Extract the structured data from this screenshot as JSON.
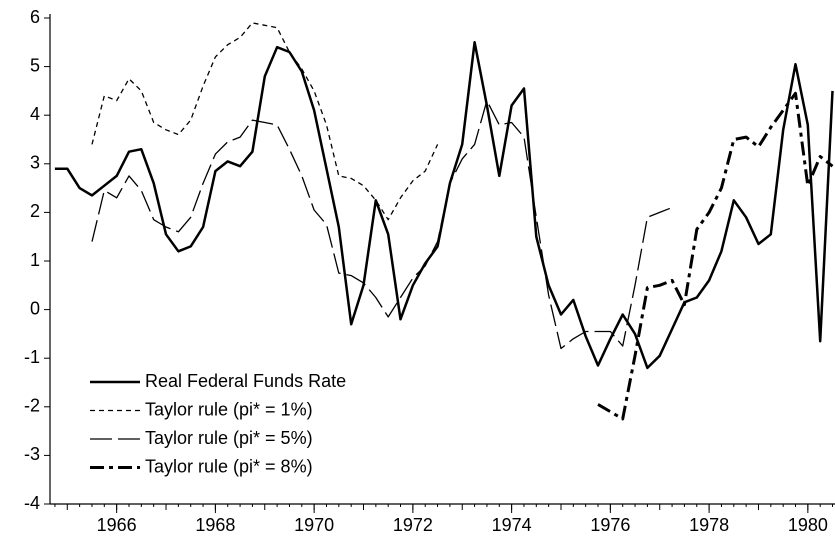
{
  "chart_data": {
    "type": "line",
    "xlim": [
      1964.65,
      1980.55
    ],
    "ylim": [
      -4,
      6
    ],
    "xticks": [
      1966,
      1968,
      1970,
      1972,
      1974,
      1976,
      1978,
      1980
    ],
    "yticks": [
      -4,
      -3,
      -2,
      -1,
      0,
      1,
      2,
      3,
      4,
      5,
      6
    ],
    "legend": "lower-left",
    "series": [
      {
        "name": "Real Federal Funds Rate",
        "color": "#000000",
        "dash": "solid",
        "width": 2.5,
        "x": [
          1964.75,
          1965,
          1965.25,
          1965.5,
          1965.75,
          1966,
          1966.25,
          1966.5,
          1966.75,
          1967,
          1967.25,
          1967.5,
          1967.75,
          1968,
          1968.25,
          1968.5,
          1968.75,
          1969,
          1969.25,
          1969.5,
          1969.75,
          1970,
          1970.25,
          1970.5,
          1970.75,
          1971,
          1971.25,
          1971.5,
          1971.75,
          1972,
          1972.25,
          1972.5,
          1972.75,
          1973,
          1973.25,
          1973.5,
          1973.75,
          1974,
          1974.25,
          1974.5,
          1974.75,
          1975,
          1975.25,
          1975.5,
          1975.75,
          1976,
          1976.25,
          1976.5,
          1976.75,
          1977,
          1977.25,
          1977.5,
          1977.75,
          1978,
          1978.25,
          1978.5,
          1978.75,
          1979,
          1979.25,
          1979.5,
          1979.75,
          1980,
          1980.25,
          1980.5
        ],
        "values": [
          2.9,
          2.9,
          2.5,
          2.35,
          2.55,
          2.75,
          3.25,
          3.3,
          2.6,
          1.55,
          1.2,
          1.3,
          1.7,
          2.85,
          3.05,
          2.95,
          3.25,
          4.8,
          5.4,
          5.3,
          4.9,
          4.1,
          2.9,
          1.7,
          -0.3,
          0.5,
          2.25,
          1.55,
          -0.2,
          0.5,
          0.95,
          1.3,
          2.6,
          3.4,
          5.5,
          4.2,
          2.75,
          4.2,
          4.55,
          1.5,
          0.5,
          -0.1,
          0.2,
          -0.55,
          -1.15,
          -0.6,
          -0.1,
          -0.5,
          -1.2,
          -0.95,
          -0.4,
          0.15,
          0.25,
          0.6,
          1.2,
          2.25,
          1.9,
          1.35,
          1.55,
          3.7,
          5.05,
          3.8,
          -0.65,
          4.5
        ]
      },
      {
        "name": "Taylor rule (pi* = 1%)",
        "color": "#000000",
        "dash": "short",
        "width": 1.3,
        "x": [
          1965.5,
          1965.75,
          1966,
          1966.25,
          1966.5,
          1966.75,
          1967,
          1967.25,
          1967.5,
          1967.75,
          1968,
          1968.25,
          1968.5,
          1968.75,
          1969,
          1969.25,
          1969.5,
          1969.75,
          1970,
          1970.25,
          1970.5,
          1970.75,
          1971,
          1971.25,
          1971.5,
          1971.75,
          1972,
          1972.25,
          1972.5
        ],
        "values": [
          3.4,
          4.4,
          4.3,
          4.75,
          4.5,
          3.85,
          3.7,
          3.6,
          3.9,
          4.6,
          5.2,
          5.45,
          5.6,
          5.9,
          5.85,
          5.8,
          5.3,
          4.95,
          4.5,
          3.8,
          2.75,
          2.7,
          2.55,
          2.25,
          1.85,
          2.3,
          2.65,
          2.85,
          3.4
        ]
      },
      {
        "name": "Taylor rule (pi* = 5%)",
        "color": "#000000",
        "dash": "long",
        "width": 1.3,
        "x": [
          1965.5,
          1965.75,
          1966,
          1966.25,
          1966.5,
          1966.75,
          1967,
          1967.25,
          1967.5,
          1967.75,
          1968,
          1968.25,
          1968.5,
          1968.75,
          1969,
          1969.25,
          1969.5,
          1969.75,
          1970,
          1970.25,
          1970.5,
          1970.75,
          1971,
          1971.25,
          1971.5,
          1971.75,
          1972,
          1972.25,
          1972.5,
          1972.75,
          1973,
          1973.25,
          1973.5,
          1973.75,
          1974,
          1974.25,
          1974.5,
          1974.75,
          1975,
          1975.25,
          1975.5,
          1975.75,
          1976,
          1976.25,
          1976.5,
          1976.75,
          1977,
          1977.25
        ],
        "values": [
          1.4,
          2.45,
          2.3,
          2.75,
          2.45,
          1.85,
          1.7,
          1.6,
          1.9,
          2.6,
          3.2,
          3.45,
          3.55,
          3.9,
          3.85,
          3.8,
          3.3,
          2.75,
          2.05,
          1.75,
          0.75,
          0.7,
          0.55,
          0.25,
          -0.15,
          0.25,
          0.65,
          0.9,
          1.4,
          2.6,
          3.1,
          3.4,
          4.3,
          3.8,
          3.85,
          3.55,
          1.9,
          0.3,
          -0.8,
          -0.6,
          -0.45,
          -0.45,
          -0.45,
          -0.75,
          0.5,
          1.9,
          2.0,
          2.1
        ]
      },
      {
        "name": "Taylor rule (pi* = 8%)",
        "color": "#000000",
        "dash": "dashdot",
        "width": 3,
        "x": [
          1975.75,
          1976,
          1976.25,
          1976.5,
          1976.75,
          1977,
          1977.25,
          1977.5,
          1977.75,
          1978,
          1978.25,
          1978.5,
          1978.75,
          1979,
          1979.25,
          1979.5,
          1979.75,
          1980,
          1980.25,
          1980.5
        ],
        "values": [
          -1.95,
          -2.1,
          -2.25,
          -0.95,
          0.45,
          0.5,
          0.6,
          0.1,
          1.65,
          2.0,
          2.5,
          3.5,
          3.55,
          3.35,
          3.75,
          4.1,
          4.45,
          2.55,
          3.15,
          2.95
        ]
      }
    ]
  }
}
